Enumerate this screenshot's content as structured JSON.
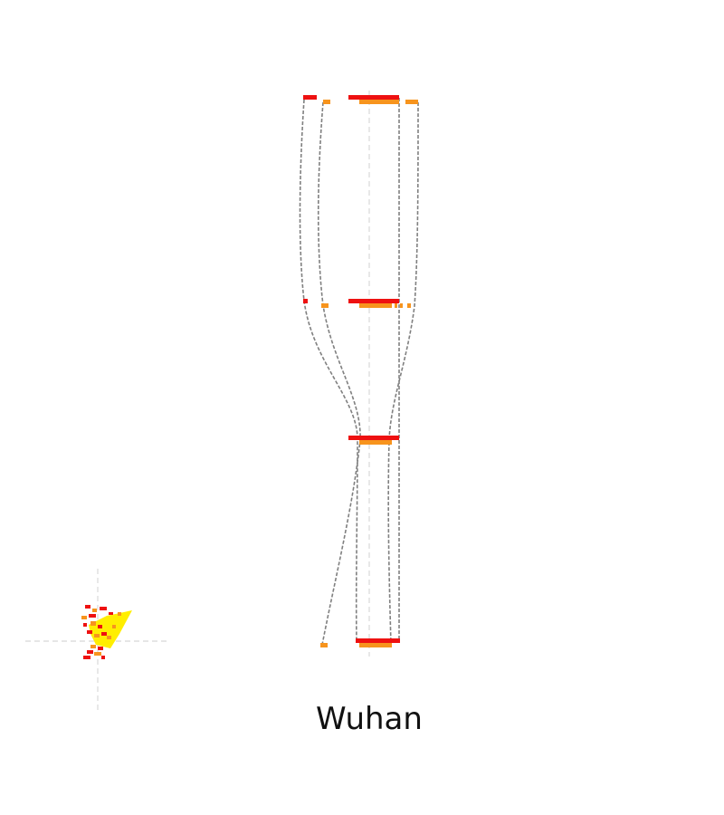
{
  "city": {
    "label": "Wuhan"
  },
  "colors": {
    "primary": "#ee1111",
    "secondary": "#f7941d",
    "highlight": "#ffee00",
    "flow": "#808080",
    "guide": "#d8d8d8"
  }
}
